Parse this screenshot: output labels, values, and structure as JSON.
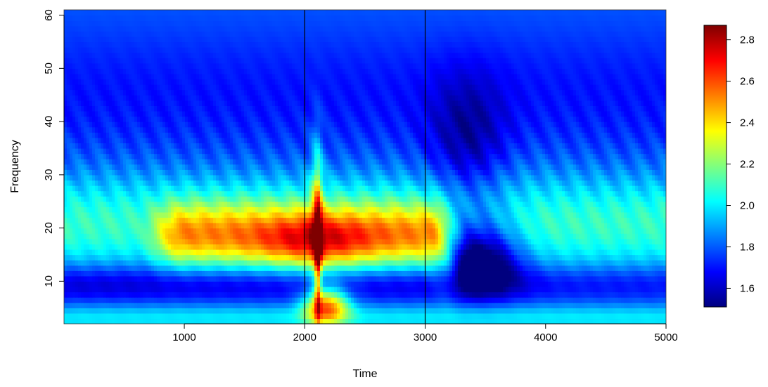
{
  "chart_data": {
    "type": "heatmap",
    "title": "",
    "xlabel": "Time",
    "ylabel": "Frequency",
    "xlim": [
      1,
      5000
    ],
    "ylim": [
      2,
      61
    ],
    "x_ticks": [
      1000,
      2000,
      3000,
      4000,
      5000
    ],
    "y_ticks": [
      10,
      20,
      30,
      40,
      50,
      60
    ],
    "vertical_lines": [
      2000,
      3000
    ],
    "colorbar": {
      "range": [
        1.51,
        2.87
      ],
      "ticks": [
        1.6,
        1.8,
        2.0,
        2.2,
        2.4,
        2.6,
        2.8
      ],
      "palette": [
        "#00007f",
        "#0000ff",
        "#007fff",
        "#00ffff",
        "#7fff7f",
        "#ffff00",
        "#ff7f00",
        "#ff0000",
        "#7f0000"
      ]
    },
    "value_summary": {
      "baseline": 1.82,
      "band_20hz_pre_2000_early": 2.15,
      "band_20hz_1000_to_3000": 2.6,
      "peak_at_2100_17hz": 2.85,
      "alpha_band_10hz_pre": 1.65,
      "low_freq_5hz_after_2100": 2.55,
      "post_3000_beta_drop_13hz": 1.55,
      "post_3000_gamma_35hz": 1.6,
      "late_recovery_20hz": 2.1
    }
  }
}
